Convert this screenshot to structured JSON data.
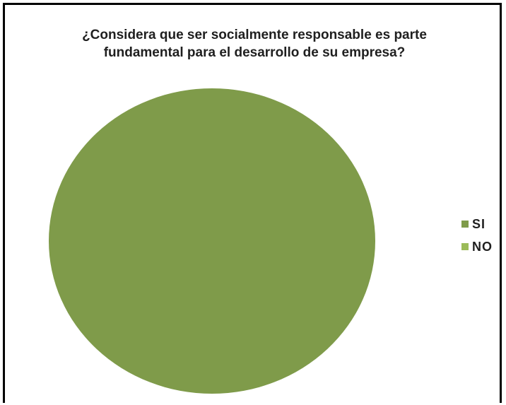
{
  "chart_data": {
    "type": "pie",
    "title": "¿Considera que ser socialmente responsable es parte\nfundamental para el desarrollo de su empresa?",
    "categories": [
      "SI",
      "NO"
    ],
    "values": [
      100,
      0
    ],
    "colors": [
      "#7f9b4a",
      "#9bbb59"
    ],
    "legend_position": "right"
  }
}
